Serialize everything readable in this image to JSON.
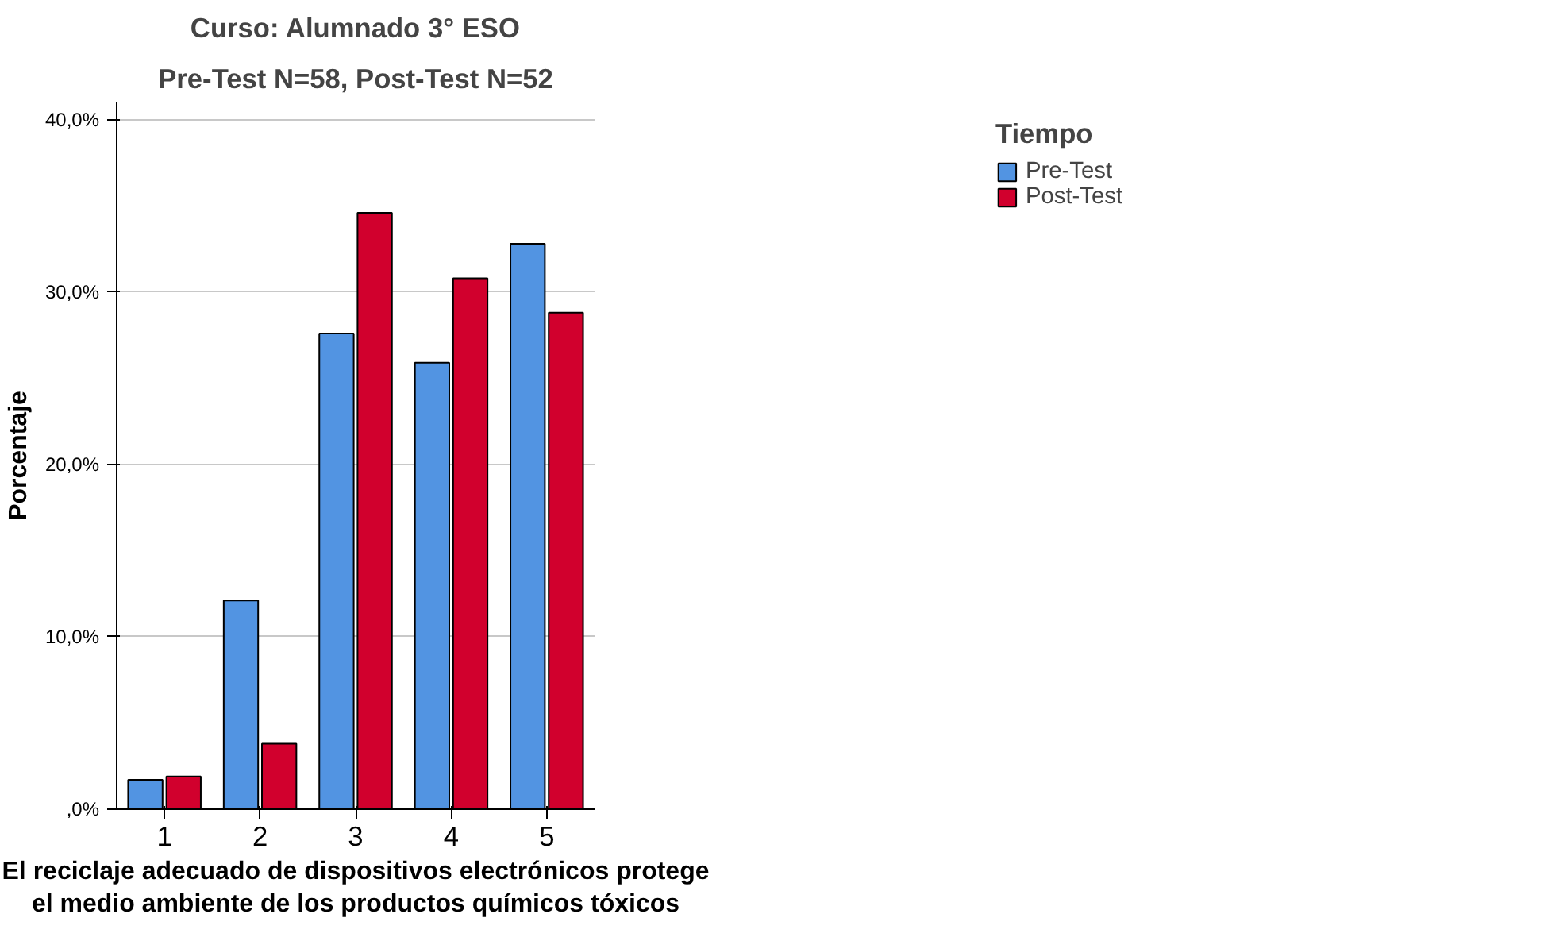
{
  "chart_data": {
    "type": "bar",
    "title": "Curso: Alumnado 3° ESO",
    "subtitle": "Pre-Test N=58, Post-Test N=52",
    "xlabel": "El reciclaje adecuado de dispositivos electrónicos protege el medio ambiente de los productos químicos tóxicos",
    "ylabel": "Porcentaje",
    "legend_title": "Tiempo",
    "categories": [
      "1",
      "2",
      "3",
      "4",
      "5"
    ],
    "series": [
      {
        "name": "Pre-Test",
        "color": "#5294e2",
        "values": [
          1.7,
          12.1,
          27.6,
          25.9,
          32.8
        ]
      },
      {
        "name": "Post-Test",
        "color": "#d1002d",
        "values": [
          1.9,
          3.8,
          34.6,
          30.8,
          28.8
        ]
      }
    ],
    "ylim": [
      0,
      41
    ],
    "yticks": [
      {
        "value": 0,
        "label": ",0%"
      },
      {
        "value": 10,
        "label": "10,0%"
      },
      {
        "value": 20,
        "label": "20,0%"
      },
      {
        "value": 30,
        "label": "30,0%"
      },
      {
        "value": 40,
        "label": "40,0%"
      }
    ],
    "grid": "y",
    "legend": "top right"
  }
}
